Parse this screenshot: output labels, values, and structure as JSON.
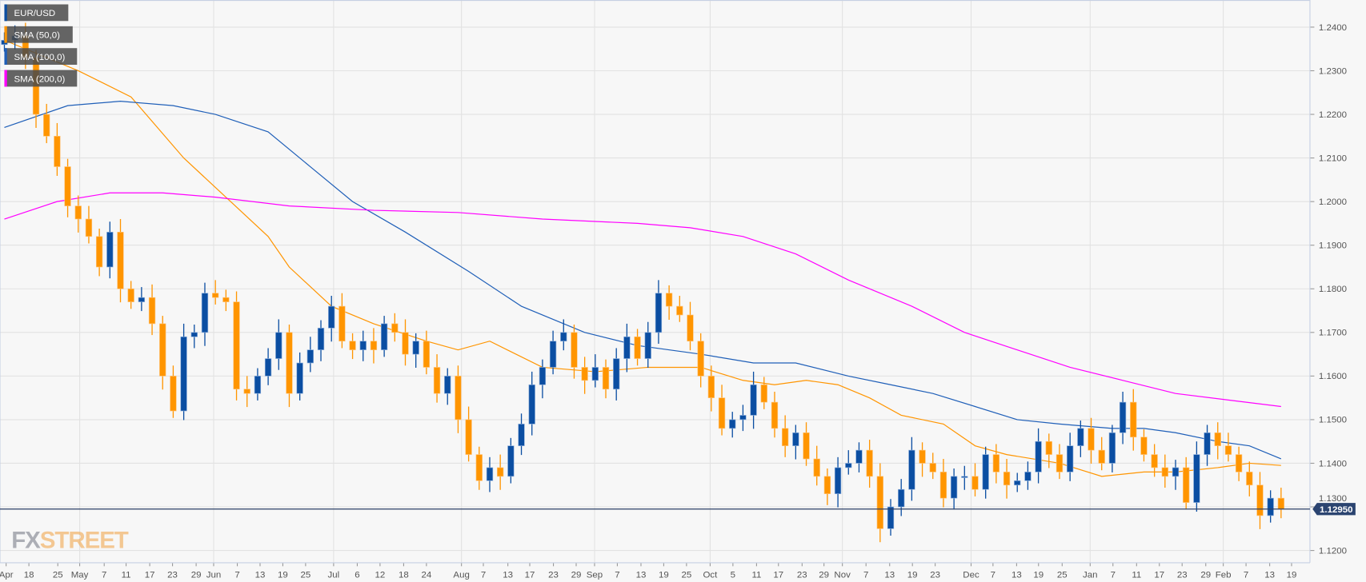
{
  "chart_data": {
    "type": "candlestick",
    "title": "EUR/USD",
    "legend": [
      {
        "label": "EUR/USD",
        "color": "#0b4ea2"
      },
      {
        "label": "SMA (50,0)",
        "color": "#ff9500"
      },
      {
        "label": "SMA (100,0)",
        "color": "#1f5fb8"
      },
      {
        "label": "SMA (200,0)",
        "color": "#ff00ff"
      }
    ],
    "legend_placement": "top-left",
    "ylim": [
      1.115,
      1.2445
    ],
    "y_ticks": [
      "1.2400",
      "1.2300",
      "1.2200",
      "1.2100",
      "1.2000",
      "1.1900",
      "1.1800",
      "1.1700",
      "1.1600",
      "1.1500",
      "1.1400",
      "1.1300",
      "1.1200"
    ],
    "y_tick_values": [
      1.24,
      1.23,
      1.22,
      1.21,
      1.2,
      1.19,
      1.18,
      1.17,
      1.16,
      1.15,
      1.14,
      1.13,
      1.12
    ],
    "x_ticks": [
      "Apr",
      "18",
      "25",
      "May",
      "7",
      "11",
      "17",
      "23",
      "29",
      "Jun",
      "7",
      "13",
      "19",
      "25",
      "Jul",
      "6",
      "12",
      "18",
      "24",
      "Aug",
      "7",
      "13",
      "17",
      "23",
      "29",
      "Sep",
      "7",
      "13",
      "19",
      "25",
      "Oct",
      "5",
      "11",
      "17",
      "23",
      "29",
      "Nov",
      "7",
      "13",
      "19",
      "23",
      "Dec",
      "7",
      "13",
      "19",
      "25",
      "Jan",
      "7",
      "11",
      "17",
      "23",
      "29",
      "Feb",
      "7",
      "13",
      "19"
    ],
    "month_ticks": [
      "May",
      "Jun",
      "Jul",
      "Aug",
      "Sep",
      "Oct",
      "Nov",
      "Dec",
      "Jan",
      "Feb"
    ],
    "current_price": 1.1295,
    "current_price_label": "1.12950",
    "bull_color": "#0b4ea2",
    "bear_color": "#ff9500",
    "closes": [
      1.237,
      1.238,
      1.233,
      1.22,
      1.215,
      1.208,
      1.199,
      1.196,
      1.192,
      1.185,
      1.193,
      1.18,
      1.177,
      1.178,
      1.172,
      1.16,
      1.152,
      1.169,
      1.17,
      1.179,
      1.178,
      1.177,
      1.157,
      1.156,
      1.16,
      1.164,
      1.17,
      1.156,
      1.163,
      1.166,
      1.171,
      1.176,
      1.168,
      1.166,
      1.168,
      1.166,
      1.172,
      1.17,
      1.165,
      1.168,
      1.162,
      1.156,
      1.16,
      1.15,
      1.142,
      1.136,
      1.139,
      1.137,
      1.144,
      1.149,
      1.158,
      1.162,
      1.168,
      1.17,
      1.162,
      1.159,
      1.162,
      1.157,
      1.164,
      1.169,
      1.164,
      1.17,
      1.179,
      1.176,
      1.174,
      1.168,
      1.16,
      1.155,
      1.148,
      1.15,
      1.151,
      1.158,
      1.154,
      1.148,
      1.144,
      1.147,
      1.141,
      1.137,
      1.133,
      1.139,
      1.14,
      1.143,
      1.137,
      1.125,
      1.13,
      1.134,
      1.143,
      1.14,
      1.138,
      1.132,
      1.137,
      1.137,
      1.134,
      1.142,
      1.138,
      1.135,
      1.136,
      1.138,
      1.145,
      1.142,
      1.138,
      1.144,
      1.148,
      1.143,
      1.14,
      1.147,
      1.154,
      1.146,
      1.142,
      1.139,
      1.137,
      1.139,
      1.131,
      1.142,
      1.147,
      1.144,
      1.142,
      1.138,
      1.135,
      1.128,
      1.132,
      1.1295
    ],
    "first_open": 1.236,
    "sma": [
      {
        "name": "SMA (50,0)",
        "color": "#ff9500",
        "points": [
          [
            0,
            1.237
          ],
          [
            7,
            1.23
          ],
          [
            12,
            1.224
          ],
          [
            17,
            1.21
          ],
          [
            21,
            1.201
          ],
          [
            25,
            1.192
          ],
          [
            27,
            1.185
          ],
          [
            31,
            1.176
          ],
          [
            35,
            1.172
          ],
          [
            40,
            1.168
          ],
          [
            43,
            1.166
          ],
          [
            46,
            1.168
          ],
          [
            51,
            1.162
          ],
          [
            56,
            1.161
          ],
          [
            61,
            1.162
          ],
          [
            66,
            1.162
          ],
          [
            70,
            1.159
          ],
          [
            73,
            1.158
          ],
          [
            76,
            1.159
          ],
          [
            79,
            1.158
          ],
          [
            82,
            1.155
          ],
          [
            85,
            1.151
          ],
          [
            89,
            1.149
          ],
          [
            92,
            1.144
          ],
          [
            95,
            1.142
          ],
          [
            100,
            1.14
          ],
          [
            104,
            1.137
          ],
          [
            108,
            1.138
          ],
          [
            111,
            1.138
          ],
          [
            115,
            1.139
          ],
          [
            118,
            1.14
          ],
          [
            121,
            1.1395
          ]
        ]
      },
      {
        "name": "SMA (100,0)",
        "color": "#1f5fb8",
        "points": [
          [
            0,
            1.217
          ],
          [
            6,
            1.222
          ],
          [
            11,
            1.223
          ],
          [
            16,
            1.222
          ],
          [
            20,
            1.22
          ],
          [
            25,
            1.216
          ],
          [
            29,
            1.208
          ],
          [
            33,
            1.2
          ],
          [
            38,
            1.193
          ],
          [
            44,
            1.184
          ],
          [
            49,
            1.176
          ],
          [
            55,
            1.17
          ],
          [
            60,
            1.167
          ],
          [
            66,
            1.165
          ],
          [
            71,
            1.163
          ],
          [
            75,
            1.163
          ],
          [
            80,
            1.16
          ],
          [
            84,
            1.158
          ],
          [
            88,
            1.156
          ],
          [
            92,
            1.153
          ],
          [
            96,
            1.15
          ],
          [
            100,
            1.149
          ],
          [
            105,
            1.148
          ],
          [
            108,
            1.148
          ],
          [
            111,
            1.147
          ],
          [
            115,
            1.145
          ],
          [
            118,
            1.144
          ],
          [
            121,
            1.141
          ]
        ]
      },
      {
        "name": "SMA (200,0)",
        "color": "#ff00ff",
        "points": [
          [
            0,
            1.196
          ],
          [
            5,
            1.2
          ],
          [
            10,
            1.202
          ],
          [
            15,
            1.202
          ],
          [
            20,
            1.201
          ],
          [
            27,
            1.199
          ],
          [
            35,
            1.198
          ],
          [
            43,
            1.1975
          ],
          [
            51,
            1.196
          ],
          [
            60,
            1.195
          ],
          [
            65,
            1.194
          ],
          [
            70,
            1.192
          ],
          [
            75,
            1.188
          ],
          [
            80,
            1.182
          ],
          [
            86,
            1.176
          ],
          [
            91,
            1.17
          ],
          [
            96,
            1.166
          ],
          [
            101,
            1.162
          ],
          [
            106,
            1.159
          ],
          [
            111,
            1.156
          ],
          [
            116,
            1.1545
          ],
          [
            121,
            1.153
          ]
        ]
      }
    ]
  },
  "watermark": {
    "fx": "FX",
    "street": "STREET"
  }
}
